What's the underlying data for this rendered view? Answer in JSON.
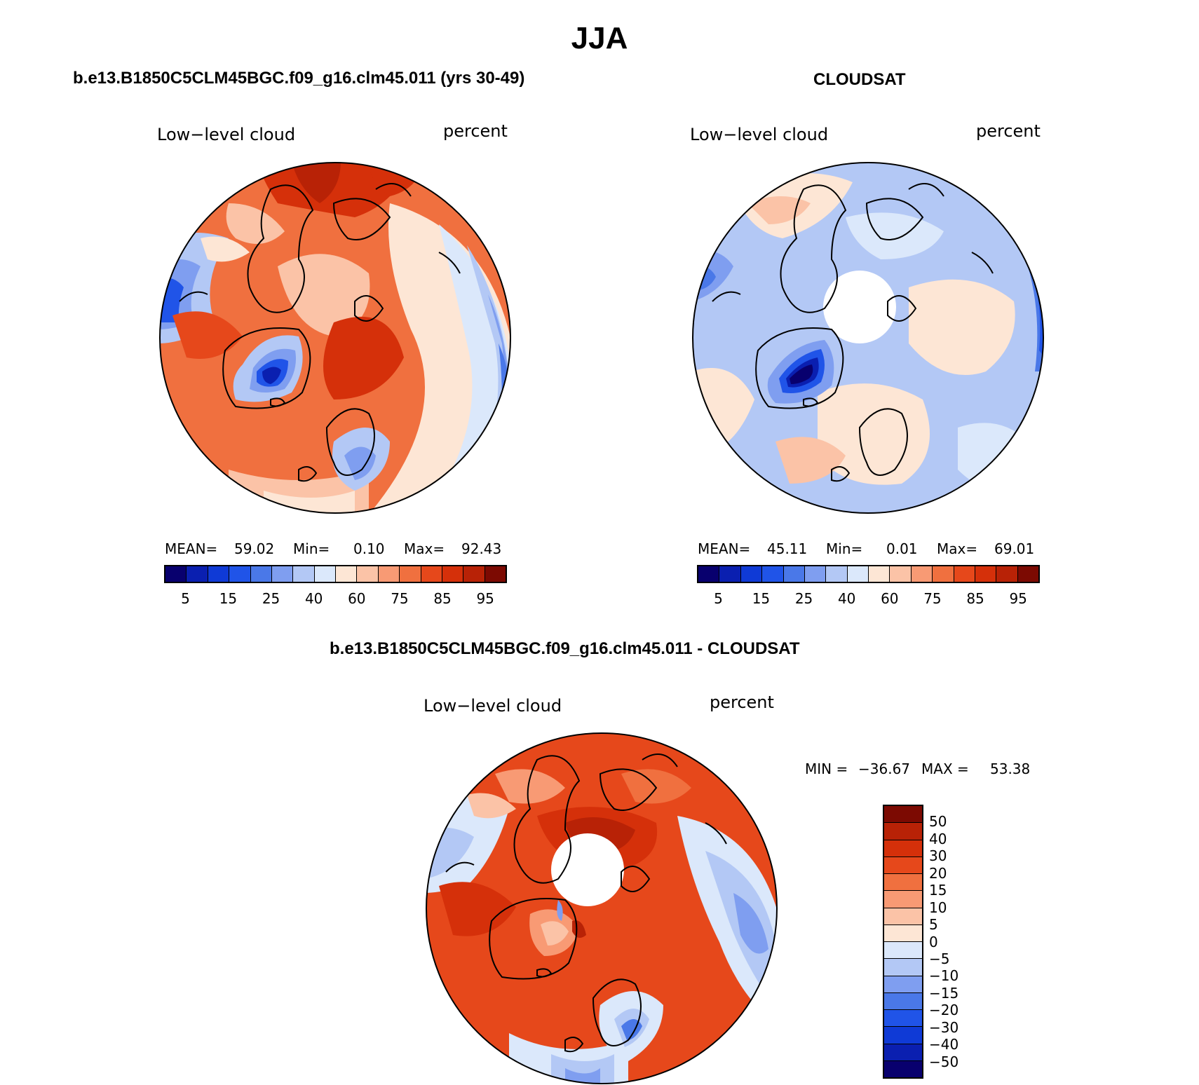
{
  "title": "JJA",
  "panels": [
    {
      "title": "b.e13.B1850C5CLM45BGC.f09_g16.clm45.011 (yrs 30-49)",
      "variable": "Low−level cloud",
      "units": "percent",
      "stats": {
        "mean_label": "MEAN=",
        "mean": "59.02",
        "min_label": "Min=",
        "min": "0.10",
        "max_label": "Max=",
        "max": "92.43"
      }
    },
    {
      "title": "CLOUDSAT",
      "variable": "Low−level cloud",
      "units": "percent",
      "stats": {
        "mean_label": "MEAN=",
        "mean": "45.11",
        "min_label": "Min=",
        "min": "0.01",
        "max_label": "Max=",
        "max": "69.01"
      }
    },
    {
      "title": "b.e13.B1850C5CLM45BGC.f09_g16.clm45.011 - CLOUDSAT",
      "variable": "Low−level cloud",
      "units": "percent",
      "stats": {
        "min_label": "MIN =",
        "min": "−36.67",
        "max_label": "MAX =",
        "max": "53.38"
      }
    }
  ],
  "abs_colorbar": {
    "colors": [
      "#08006e",
      "#0a1fb0",
      "#0f3ad6",
      "#2054e8",
      "#4a78e8",
      "#7f9ef0",
      "#b3c8f5",
      "#dbe8fb",
      "#fde6d5",
      "#fbc3a7",
      "#f89a74",
      "#f0703f",
      "#e6481b",
      "#d5300a",
      "#b82206",
      "#7c0a02"
    ],
    "ticks": [
      "5",
      "15",
      "25",
      "40",
      "60",
      "75",
      "85",
      "95"
    ]
  },
  "diff_colorbar": {
    "colors": [
      "#7c0a02",
      "#b82206",
      "#d5300a",
      "#e6481b",
      "#f0703f",
      "#f89a74",
      "#fbc3a7",
      "#fde6d5",
      "#dbe8fb",
      "#b3c8f5",
      "#7f9ef0",
      "#4a78e8",
      "#2054e8",
      "#0f3ad6",
      "#0a1fb0",
      "#08006e"
    ],
    "ticks": [
      "50",
      "40",
      "30",
      "20",
      "15",
      "10",
      "5",
      "0",
      "−5",
      "−10",
      "−15",
      "−20",
      "−30",
      "−40",
      "−50"
    ]
  },
  "map_colors": {
    "panel1": {
      "base": "#f0703f",
      "patches": [
        "#d5300a",
        "#b82206",
        "#fbc3a7",
        "#f89a74",
        "#fde6d5",
        "#dbe8fb",
        "#b3c8f5",
        "#7f9ef0",
        "#4a78e8",
        "#2054e8",
        "#0a1fb0"
      ]
    },
    "panel2": {
      "base": "#b3c8f5",
      "patches": [
        "#fde6d5",
        "#fbc3a7",
        "#dbe8fb",
        "#7f9ef0",
        "#4a78e8",
        "#2054e8",
        "#0a1fb0",
        "#08006e"
      ]
    },
    "panel3": {
      "base": "#e6481b",
      "patches": [
        "#d5300a",
        "#b82206",
        "#f0703f",
        "#f89a74",
        "#fbc3a7",
        "#fde6d5",
        "#dbe8fb",
        "#b3c8f5",
        "#7f9ef0",
        "#4a78e8"
      ]
    }
  }
}
